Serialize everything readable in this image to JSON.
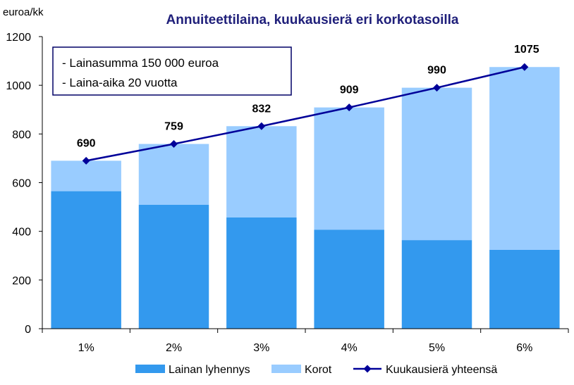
{
  "chart_data": {
    "type": "bar",
    "title": "Annuiteettilaina, kuukausierä eri korkotasoilla",
    "ylabel": "euroa/kk",
    "xlabel": "",
    "ylim": [
      0,
      1200
    ],
    "yticks": [
      0,
      200,
      400,
      600,
      800,
      1000,
      1200
    ],
    "categories": [
      "1%",
      "2%",
      "3%",
      "4%",
      "5%",
      "6%"
    ],
    "stacked": true,
    "series": [
      {
        "name": "Lainan lyhennys",
        "kind": "bar",
        "color": "#3399ee",
        "values": [
          565,
          509,
          457,
          407,
          364,
          324
        ]
      },
      {
        "name": "Korot",
        "kind": "bar",
        "color": "#99ccff",
        "values": [
          125,
          250,
          375,
          502,
          626,
          751
        ]
      },
      {
        "name": "Kuukausierä yhteensä",
        "kind": "line",
        "color": "#000099",
        "values": [
          690,
          759,
          832,
          909,
          990,
          1075
        ]
      }
    ],
    "annotations": [
      "- Lainasumma 150 000 euroa",
      "- Laina-aika 20 vuotta"
    ],
    "grid": false,
    "legend": "bottom"
  }
}
